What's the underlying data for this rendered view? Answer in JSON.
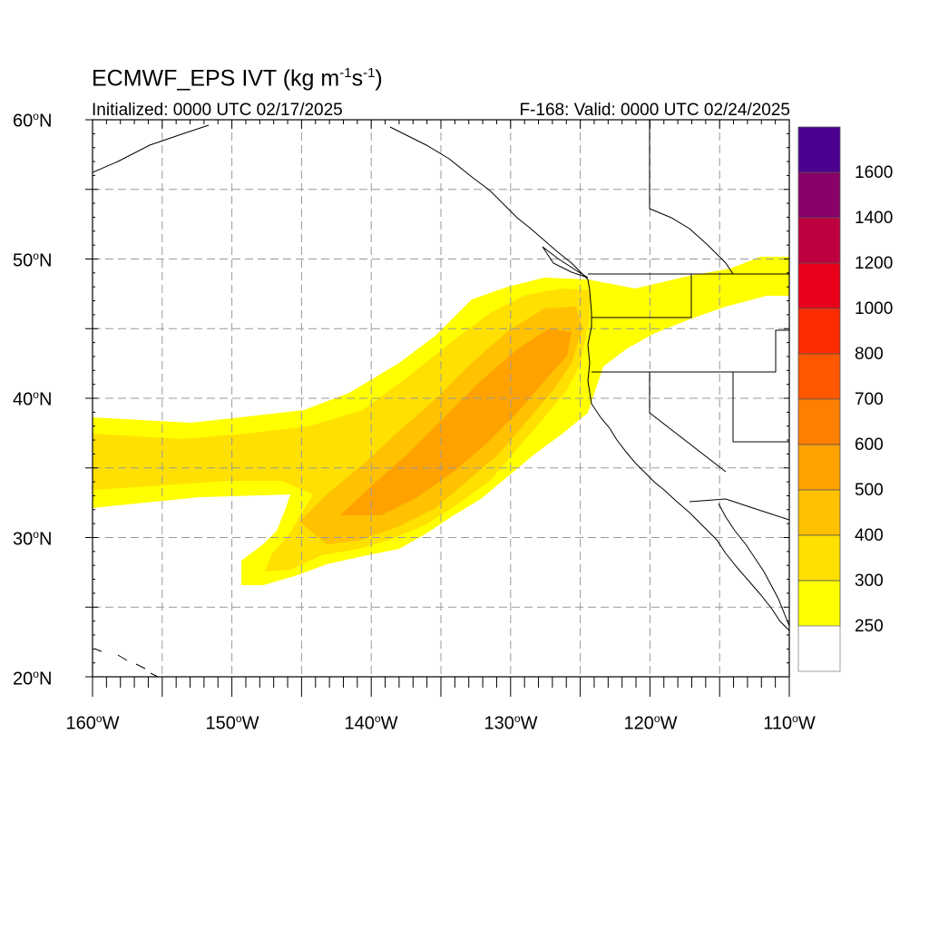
{
  "title": {
    "model": "ECMWF_EPS",
    "var": "IVT",
    "units": {
      "base": "kg m",
      "exp1": "-1",
      "s": "s",
      "exp2": "-1"
    }
  },
  "subtitle": {
    "left": "Initialized: 0000 UTC 02/17/2025",
    "right": "F-168: Valid: 0000 UTC 02/24/2025"
  },
  "lat_labels": [
    {
      "value": "60",
      "hemi": "N"
    },
    {
      "value": "50",
      "hemi": "N"
    },
    {
      "value": "40",
      "hemi": "N"
    },
    {
      "value": "30",
      "hemi": "N"
    },
    {
      "value": "20",
      "hemi": "N"
    }
  ],
  "lon_labels": [
    {
      "value": "160",
      "hemi": "W"
    },
    {
      "value": "150",
      "hemi": "W"
    },
    {
      "value": "140",
      "hemi": "W"
    },
    {
      "value": "130",
      "hemi": "W"
    },
    {
      "value": "120",
      "hemi": "W"
    },
    {
      "value": "110",
      "hemi": "W"
    }
  ],
  "map_extent": {
    "lon_min": -160,
    "lon_max": -110,
    "lat_min": 20,
    "lat_max": 60
  },
  "grid": {
    "lon_spacing": 5,
    "lat_spacing": 5,
    "style": "dashed",
    "color": "#999999"
  },
  "colorbar": {
    "labels": [
      "1600",
      "1400",
      "1200",
      "1000",
      "800",
      "700",
      "600",
      "500",
      "400",
      "300",
      "250"
    ],
    "colors": [
      "#4b0090",
      "#880068",
      "#bf0040",
      "#e8001a",
      "#ff2c00",
      "#ff5800",
      "#ff7f00",
      "#ffa200",
      "#ffc100",
      "#ffe000",
      "#ffff00",
      "#ffffff"
    ]
  },
  "ivt_levels": {
    "250": "#ffff00",
    "300": "#ffe000",
    "400": "#ffc100",
    "500": "#ffa200"
  }
}
